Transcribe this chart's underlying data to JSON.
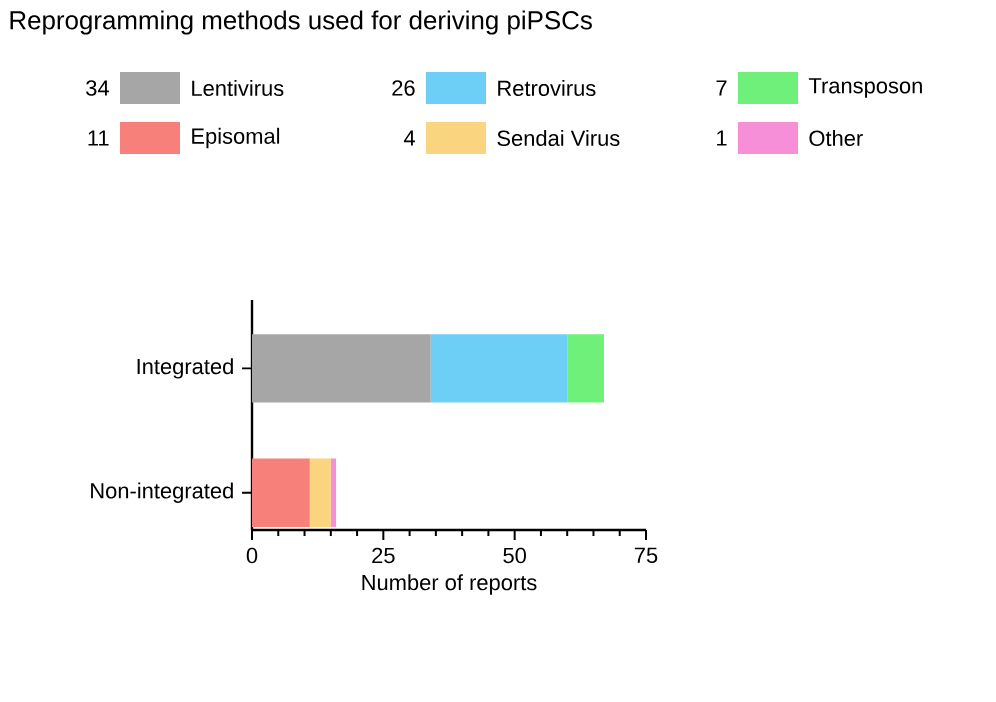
{
  "chart_data": {
    "type": "bar",
    "orientation": "horizontal",
    "stacked": true,
    "title": "Reprogramming methods used for deriving piPSCs",
    "xlabel": "Number of reports",
    "categories": [
      "Integrated",
      "Non-integrated"
    ],
    "xlim": [
      0,
      75
    ],
    "xticks": [
      0,
      25,
      50,
      75
    ],
    "legend": "top",
    "annotations": [
      "34",
      "26",
      "7",
      "11",
      "4",
      "1"
    ],
    "series": [
      {
        "name": "Lentivirus",
        "color": "#a6a6a6",
        "values": [
          34,
          null
        ]
      },
      {
        "name": "Retrovirus",
        "color": "#6dcff6",
        "values": [
          26,
          null
        ]
      },
      {
        "name": "Transposon",
        "color": "#6ef07a",
        "values": [
          7,
          null
        ]
      },
      {
        "name": "Episomal",
        "color": "#f8807a",
        "values": [
          null,
          11
        ]
      },
      {
        "name": "Sendai Virus",
        "color": "#fbd47f",
        "values": [
          null,
          4
        ]
      },
      {
        "name": "Other",
        "color": "#f68fd8",
        "values": [
          null,
          1
        ]
      }
    ]
  }
}
